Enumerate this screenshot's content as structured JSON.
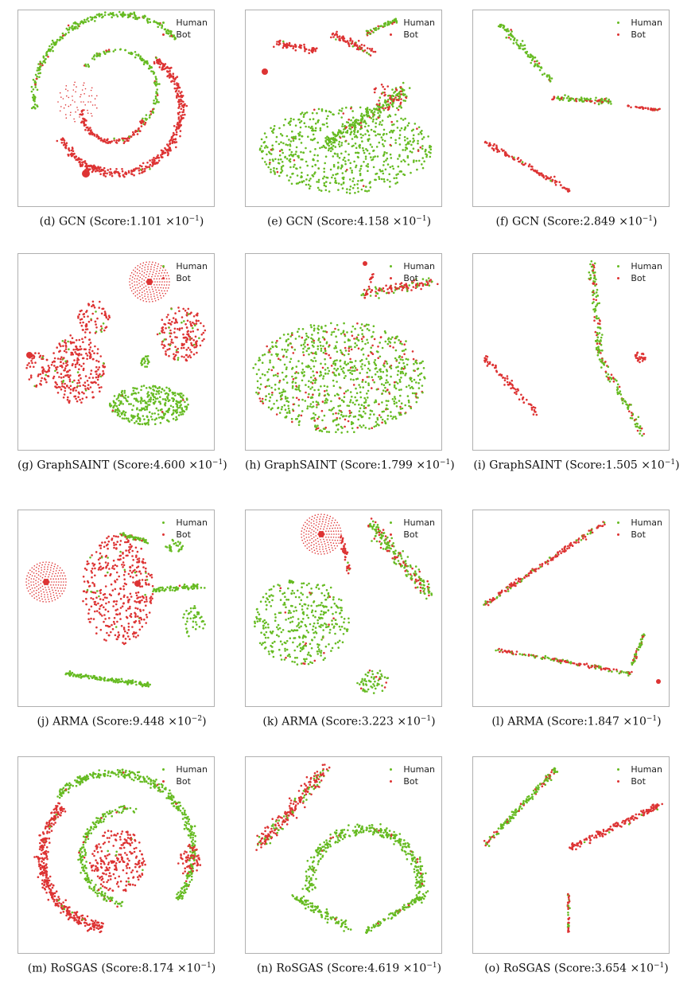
{
  "colors": {
    "human": "#66bb22",
    "bot": "#dd3333"
  },
  "legend": {
    "human": "Human",
    "bot": "Bot"
  },
  "chart_data": [
    {
      "id": "d",
      "type": "scatter",
      "label": "(d)",
      "method": "GCN",
      "score_mantissa": "1.101",
      "score_exp": "−1",
      "caption_prefix": "(d)  GCN (Score:",
      "clusters": "gcn_spiral"
    },
    {
      "id": "e",
      "type": "scatter",
      "label": "(e)",
      "method": "GCN",
      "score_mantissa": "4.158",
      "score_exp": "−1",
      "caption_prefix": "(e)  GCN (Score:",
      "clusters": "gcn_e"
    },
    {
      "id": "f",
      "type": "scatter",
      "label": "(f)",
      "method": "GCN",
      "score_mantissa": "2.849",
      "score_exp": "−1",
      "caption_prefix": "(f)  GCN (Score:",
      "clusters": "gcn_f"
    },
    {
      "id": "g",
      "type": "scatter",
      "label": "(g)",
      "method": "GraphSAINT",
      "score_mantissa": "4.600",
      "score_exp": "−1",
      "caption_prefix": "(g)  GraphSAINT (Score:",
      "clusters": "saint_g"
    },
    {
      "id": "h",
      "type": "scatter",
      "label": "(h)",
      "method": "GraphSAINT",
      "score_mantissa": "1.799",
      "score_exp": "−1",
      "caption_prefix": "(h)  GraphSAINT (Score:",
      "clusters": "saint_h"
    },
    {
      "id": "i",
      "type": "scatter",
      "label": "(i)",
      "method": "GraphSAINT",
      "score_mantissa": "1.505",
      "score_exp": "−1",
      "caption_prefix": "(i)  GraphSAINT (Score:",
      "clusters": "saint_i"
    },
    {
      "id": "j",
      "type": "scatter",
      "label": "(j)",
      "method": "ARMA",
      "score_mantissa": "9.448",
      "score_exp": "−2",
      "caption_prefix": "(j)  ARMA (Score:",
      "clusters": "arma_j"
    },
    {
      "id": "k",
      "type": "scatter",
      "label": "(k)",
      "method": "ARMA",
      "score_mantissa": "3.223",
      "score_exp": "−1",
      "caption_prefix": "(k)  ARMA (Score:",
      "clusters": "arma_k"
    },
    {
      "id": "l",
      "type": "scatter",
      "label": "(l)",
      "method": "ARMA",
      "score_mantissa": "1.847",
      "score_exp": "−1",
      "caption_prefix": "(l)  ARMA (Score:",
      "clusters": "arma_l"
    },
    {
      "id": "m",
      "type": "scatter",
      "label": "(m)",
      "method": "RoSGAS",
      "score_mantissa": "8.174",
      "score_exp": "−1",
      "caption_prefix": "(m)  RoSGAS (Score:",
      "clusters": "rosgas_m"
    },
    {
      "id": "n",
      "type": "scatter",
      "label": "(n)",
      "method": "RoSGAS",
      "score_mantissa": "4.619",
      "score_exp": "−1",
      "caption_prefix": "(n)  RoSGAS (Score:",
      "clusters": "rosgas_n"
    },
    {
      "id": "o",
      "type": "scatter",
      "label": "(o)",
      "method": "RoSGAS",
      "score_mantissa": "3.654",
      "score_exp": "−1",
      "caption_prefix": "(o)  RoSGAS (Score:",
      "clusters": "rosgas_o"
    }
  ],
  "caption_times": "×10"
}
